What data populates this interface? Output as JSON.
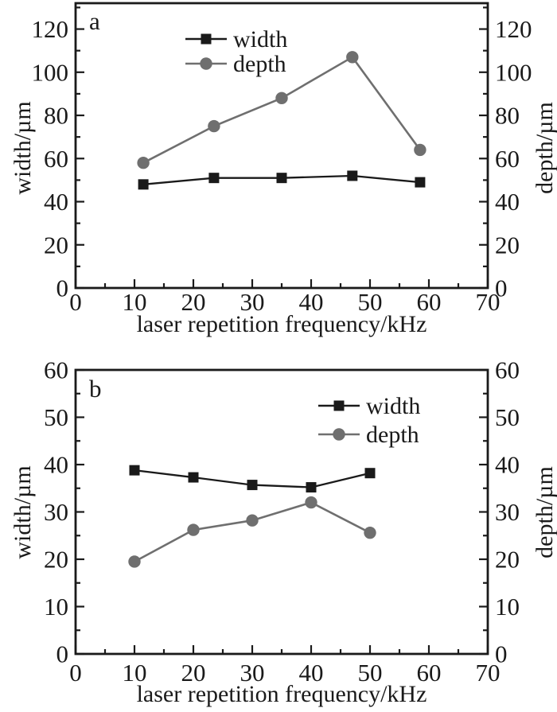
{
  "figure_title": "",
  "colors": {
    "width_series": "#1a1a1a",
    "depth_series": "#6f6f6f",
    "axis": "#1a1a1a",
    "background": "#ffffff"
  },
  "chart_data": [
    {
      "type": "line",
      "panel_label": "a",
      "xlabel": "laser repetition frequency/kHz",
      "ylabel_left": "width/µm",
      "ylabel_right": "depth/µm",
      "xlim": [
        0,
        70
      ],
      "ylim": [
        0,
        132
      ],
      "x_major_ticks": [
        0,
        10,
        20,
        30,
        40,
        50,
        60,
        70
      ],
      "x_minor_step": 5,
      "y_major_ticks": [
        0,
        20,
        40,
        60,
        80,
        100,
        120
      ],
      "y_minor_step": 10,
      "grid": false,
      "legend_position": "inside-top-center",
      "x": [
        11.5,
        23.5,
        35,
        47,
        58.5
      ],
      "series": [
        {
          "name": "width",
          "marker": "square",
          "color_key": "width_series",
          "values": [
            48,
            51,
            51,
            52,
            49
          ]
        },
        {
          "name": "depth",
          "marker": "circle",
          "color_key": "depth_series",
          "values": [
            58,
            75,
            88,
            107,
            64
          ]
        }
      ]
    },
    {
      "type": "line",
      "panel_label": "b",
      "xlabel": "laser repetition frequency/kHz",
      "ylabel_left": "width/µm",
      "ylabel_right": "depth/µm",
      "xlim": [
        0,
        70
      ],
      "ylim": [
        0,
        60
      ],
      "x_major_ticks": [
        0,
        10,
        20,
        30,
        40,
        50,
        60,
        70
      ],
      "x_minor_step": 5,
      "y_major_ticks": [
        0,
        10,
        20,
        30,
        40,
        50,
        60
      ],
      "y_minor_step": 5,
      "grid": false,
      "legend_position": "inside-top-right",
      "x": [
        10,
        20,
        30,
        40,
        50
      ],
      "series": [
        {
          "name": "width",
          "marker": "square",
          "color_key": "width_series",
          "values": [
            38.8,
            37.3,
            35.7,
            35.2,
            38.2
          ]
        },
        {
          "name": "depth",
          "marker": "circle",
          "color_key": "depth_series",
          "values": [
            19.5,
            26.2,
            28.2,
            32,
            25.6
          ]
        }
      ]
    }
  ]
}
